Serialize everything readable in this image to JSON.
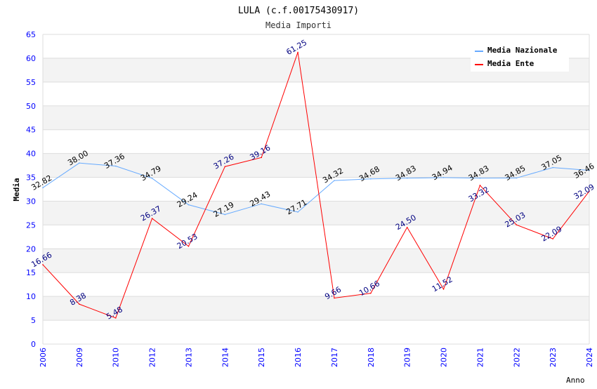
{
  "chart_data": {
    "type": "line",
    "title": "LULA (c.f.00175430917)",
    "subtitle": "Media Importi",
    "xlabel": "Anno",
    "ylabel": "Media",
    "ylim": [
      0,
      65
    ],
    "yticks": [
      0,
      5,
      10,
      15,
      20,
      25,
      30,
      35,
      40,
      45,
      50,
      55,
      60,
      65
    ],
    "categories": [
      "2006",
      "2009",
      "2010",
      "2012",
      "2013",
      "2014",
      "2015",
      "2016",
      "2017",
      "2018",
      "2019",
      "2020",
      "2021",
      "2022",
      "2023",
      "2024"
    ],
    "legend_position": "top-right",
    "series": [
      {
        "name": "Media Nazionale",
        "color": "#66aaff",
        "label_color": "#000000",
        "values": [
          32.82,
          38.0,
          37.36,
          34.79,
          29.24,
          27.19,
          29.43,
          27.71,
          34.32,
          34.68,
          34.83,
          34.94,
          34.83,
          34.85,
          37.05,
          36.46
        ],
        "labels": [
          "32.82",
          "38.00",
          "37.36",
          "34.79",
          "29.24",
          "27.19",
          "29.43",
          "27.71",
          "34.32",
          "34.68",
          "34.83",
          "34.94",
          "34.83",
          "34.85",
          "37.05",
          "36.46"
        ]
      },
      {
        "name": "Media Ente",
        "color": "#ff0000",
        "label_color": "#000080",
        "values": [
          16.66,
          8.38,
          5.48,
          26.37,
          20.53,
          37.26,
          39.16,
          61.25,
          9.66,
          10.66,
          24.5,
          11.52,
          33.32,
          25.03,
          22.09,
          32.09
        ],
        "labels": [
          "16.66",
          "8.38",
          "5.48",
          "26.37",
          "20.53",
          "37.26",
          "39.16",
          "61.25",
          "9.66",
          "10.66",
          "24.50",
          "11.52",
          "33.32",
          "25.03",
          "22.09",
          "32.09"
        ]
      }
    ],
    "grid": true
  }
}
